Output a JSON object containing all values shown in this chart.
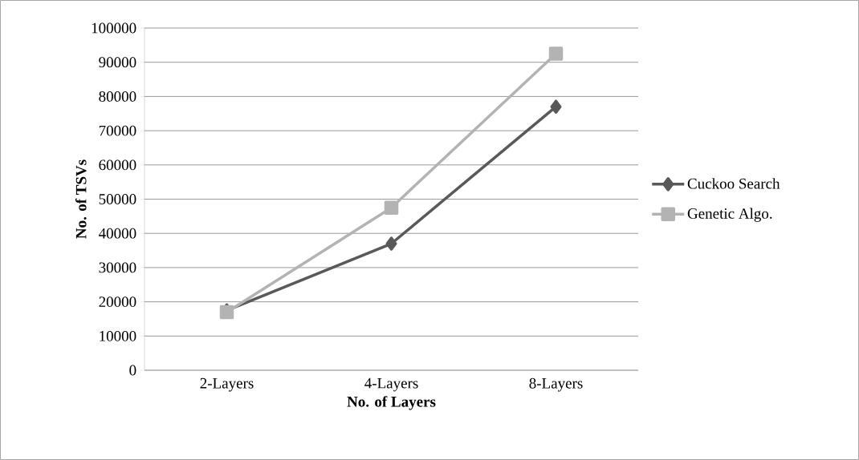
{
  "chart_data": {
    "type": "line",
    "xlabel": "No. of Layers",
    "ylabel": "No. of TSVs",
    "categories": [
      "2-Layers",
      "4-Layers",
      "8-Layers"
    ],
    "series": [
      {
        "name": "Cuckoo Search",
        "color": "#595959",
        "marker": "diamond",
        "values": [
          17500,
          37000,
          77000
        ]
      },
      {
        "name": "Genetic Algo.",
        "color": "#b3b3b3",
        "marker": "square",
        "values": [
          17000,
          47500,
          92500
        ]
      }
    ],
    "ylim": [
      0,
      100000
    ],
    "yticks": [
      0,
      10000,
      20000,
      30000,
      40000,
      50000,
      60000,
      70000,
      80000,
      90000,
      100000
    ],
    "grid": "y",
    "legend": "right",
    "line_style": "solid"
  }
}
